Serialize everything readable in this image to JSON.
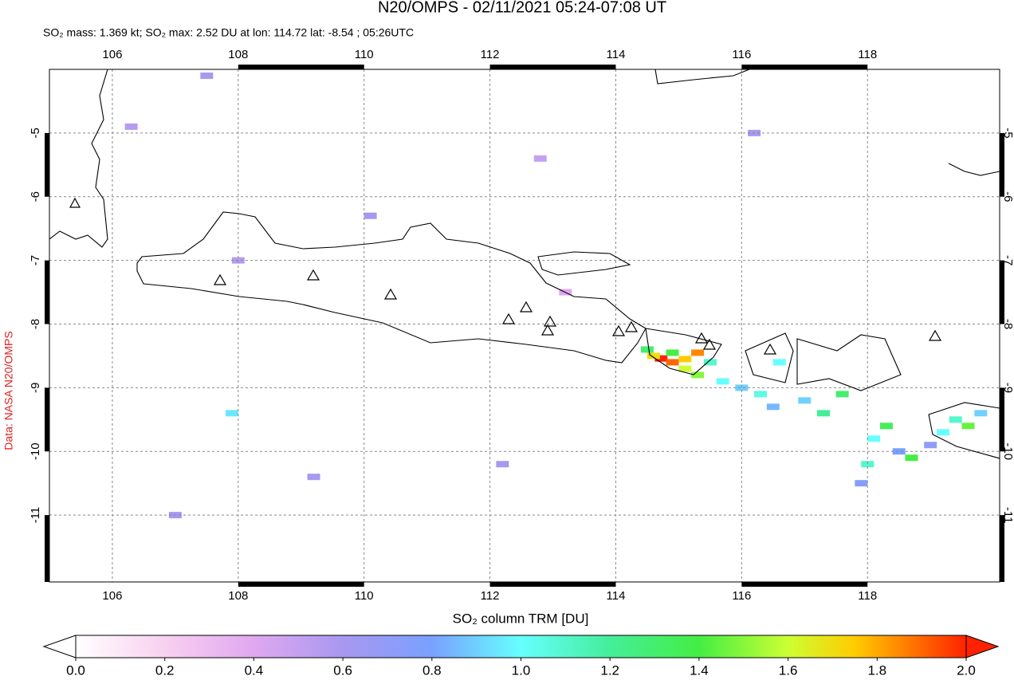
{
  "title": "N20/OMPS - 02/11/2021 05:24-07:08 UT",
  "subtitle": "SO₂ mass: 1.369 kt; SO₂ max: 2.52 DU at lon: 114.72 lat: -8.54 ; 05:26UTC",
  "credit": "Data: NASA N20/OMPS",
  "map": {
    "xlim": [
      105,
      120.1
    ],
    "ylim": [
      -4,
      -12.05
    ],
    "xticks": [
      106,
      108,
      110,
      112,
      114,
      116,
      118
    ],
    "yticks": [
      -5,
      -6,
      -7,
      -8,
      -9,
      -10,
      -11
    ],
    "pixels": {
      "lon": [
        114.72,
        114.9,
        114.6,
        115.1,
        115.3,
        114.9,
        115.1,
        115.3,
        115.5,
        115.7,
        114.5,
        116.0,
        116.3,
        116.6,
        116.5,
        117.0,
        117.3,
        117.6,
        118.1,
        118.3,
        118.0,
        118.5,
        118.7,
        119.0,
        119.2,
        119.4,
        119.6,
        119.8,
        117.9,
        113.2,
        110.1,
        108.0,
        107.5,
        107.9,
        112.2,
        106.3,
        112.8,
        107.0,
        109.2,
        116.2
      ],
      "lat": [
        -8.54,
        -8.6,
        -8.5,
        -8.55,
        -8.45,
        -8.45,
        -8.7,
        -8.8,
        -8.6,
        -8.9,
        -8.4,
        -9.0,
        -9.1,
        -8.6,
        -9.3,
        -9.2,
        -9.4,
        -9.1,
        -9.8,
        -9.6,
        -10.2,
        -10.0,
        -10.1,
        -9.9,
        -9.7,
        -9.5,
        -9.6,
        -9.4,
        -10.5,
        -7.5,
        -6.3,
        -7.0,
        -4.1,
        -9.4,
        -10.2,
        -4.9,
        -5.4,
        -11.0,
        -10.4,
        -5.0
      ],
      "values": [
        2.52,
        1.9,
        1.7,
        1.75,
        1.85,
        1.4,
        1.6,
        1.5,
        1.1,
        1.0,
        1.3,
        0.9,
        1.05,
        1.0,
        0.85,
        0.9,
        1.2,
        1.3,
        1.0,
        1.35,
        1.1,
        0.8,
        1.4,
        0.7,
        1.0,
        1.1,
        1.45,
        0.9,
        0.75,
        0.4,
        0.6,
        0.55,
        0.6,
        0.95,
        0.6,
        0.55,
        0.5,
        0.6,
        0.6,
        0.6
      ]
    }
  },
  "colorbar": {
    "label": "SO₂ column TRM [DU]",
    "lim": [
      0,
      2
    ],
    "ticks": [
      {
        "value": 0,
        "label": "0.0"
      },
      {
        "value": 0.2,
        "label": "0.2"
      },
      {
        "value": 0.4,
        "label": "0.4"
      },
      {
        "value": 0.6,
        "label": "0.6"
      },
      {
        "value": 0.8,
        "label": "0.8"
      },
      {
        "value": 1,
        "label": "1.0"
      },
      {
        "value": 1.2,
        "label": "1.2"
      },
      {
        "value": 1.4,
        "label": "1.4"
      },
      {
        "value": 1.6,
        "label": "1.6"
      },
      {
        "value": 1.8,
        "label": "1.8"
      },
      {
        "value": 2,
        "label": "2.0"
      }
    ]
  }
}
